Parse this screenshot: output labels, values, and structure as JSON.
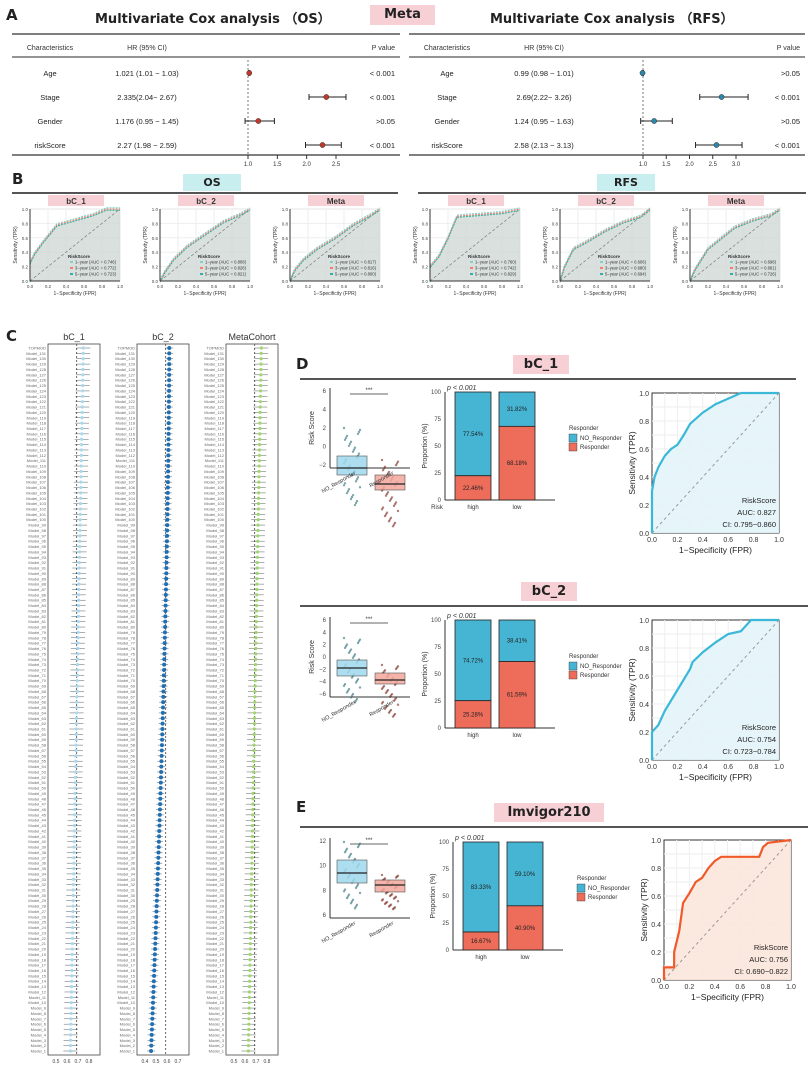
{
  "panelA": {
    "letter": "A",
    "center_label": "Meta",
    "headers": {
      "characteristics": "Characteristics",
      "hr": "HR (95% CI)",
      "p": "P value"
    },
    "os": {
      "title": "Multivariate Cox analysis （OS）",
      "rows": [
        {
          "name": "Age",
          "hr_text": "1.021 (1.01 − 1.03)",
          "hr": 1.021,
          "lo": 1.01,
          "hi": 1.03,
          "p": "< 0.001"
        },
        {
          "name": "Stage",
          "hr_text": "2.335(2.04− 2.67)",
          "hr": 2.335,
          "lo": 2.04,
          "hi": 2.67,
          "p": "< 0.001"
        },
        {
          "name": "Gender",
          "hr_text": "1.176 (0.95 − 1.45)",
          "hr": 1.176,
          "lo": 0.95,
          "hi": 1.45,
          "p": ">0.05"
        },
        {
          "name": "riskScore",
          "hr_text": "2.27 (1.98 − 2.59)",
          "hr": 2.27,
          "lo": 1.98,
          "hi": 2.59,
          "p": "< 0.001"
        }
      ],
      "ticks": [
        "1.0",
        "1.5",
        "2.0",
        "2.5"
      ],
      "color": "#c0392b"
    },
    "rfs": {
      "title": "Multivariate Cox analysis （RFS）",
      "rows": [
        {
          "name": "Age",
          "hr_text": "0.99 (0.98 − 1.01)",
          "hr": 0.99,
          "lo": 0.98,
          "hi": 1.01,
          "p": ">0.05"
        },
        {
          "name": "Stage",
          "hr_text": "2.69(2.22− 3.26)",
          "hr": 2.69,
          "lo": 2.22,
          "hi": 3.26,
          "p": "< 0.001"
        },
        {
          "name": "Gender",
          "hr_text": "1.24 (0.95 − 1.63)",
          "hr": 1.24,
          "lo": 0.95,
          "hi": 1.63,
          "p": ">0.05"
        },
        {
          "name": "riskScore",
          "hr_text": "2.58 (2.13 − 3.13)",
          "hr": 2.58,
          "lo": 2.13,
          "hi": 3.13,
          "p": "< 0.001"
        }
      ],
      "ticks": [
        "1.0",
        "1.5",
        "2.0",
        "2.5",
        "3.0"
      ],
      "color": "#2e86ab"
    }
  },
  "panelB": {
    "letter": "B",
    "os_label": "OS",
    "rfs_label": "RFS",
    "xlabel": "1−Specificity (FPR)",
    "ylabel": "Sensitivity (TPR)",
    "legend_title": "RiskScore",
    "ticks": [
      "0.0",
      "0.2",
      "0.4",
      "0.6",
      "0.8",
      "1.0"
    ],
    "plots": [
      {
        "cohort": "bC_1",
        "group": "OS",
        "aucs": [
          "1−year (AUC = 0.746)",
          "3−year (AUC = 0.772)",
          "5−year (AUC = 0.723)"
        ]
      },
      {
        "cohort": "bC_2",
        "group": "OS",
        "aucs": [
          "1−year (AUC = 0.808)",
          "3−year (AUC = 0.826)",
          "5−year (AUC = 0.821)"
        ]
      },
      {
        "cohort": "Meta",
        "group": "OS",
        "aucs": [
          "1−year (AUC = 0.817)",
          "3−year (AUC = 0.816)",
          "5−year (AUC = 0.800)"
        ]
      },
      {
        "cohort": "bC_1",
        "group": "RFS",
        "aucs": [
          "1−year (AUC = 0.760)",
          "3−year (AUC = 0.742)",
          "5−year (AUC = 0.829)"
        ]
      },
      {
        "cohort": "bC_2",
        "group": "RFS",
        "aucs": [
          "1−year (AUC = 0.606)",
          "3−year (AUC = 0.680)",
          "5−year (AUC = 0.694)"
        ]
      },
      {
        "cohort": "Meta",
        "group": "RFS",
        "aucs": [
          "1−year (AUC = 0.698)",
          "3−year (AUC = 0.681)",
          "5−year (AUC = 0.726)"
        ]
      }
    ]
  },
  "panelC": {
    "letter": "C",
    "columns": [
      {
        "title": "bC_1",
        "color": "#a8d8f0",
        "ticks": [
          "0.5",
          "0.6",
          "0.7",
          "0.8"
        ]
      },
      {
        "title": "bC_2",
        "color": "#1f6fb5",
        "ticks": [
          "0.4",
          "0.5",
          "0.6",
          "0.7"
        ]
      },
      {
        "title": "MetaCohort",
        "color": "#9fd56e",
        "ticks": [
          "0.5",
          "0.6",
          "0.7",
          "0.8"
        ]
      }
    ],
    "first_row_label": "TOPMOD"
  },
  "panelD": {
    "letter": "D",
    "cohorts": [
      {
        "name": "bC_1",
        "box": {
          "ylabel": "Risk Score",
          "yticks": [
            "6",
            "4",
            "2",
            "0",
            "−2"
          ],
          "groups": [
            "NO_Responder",
            "Responder"
          ],
          "sig": "***"
        },
        "bar": {
          "p": "p < 0.001",
          "ylabel": "Proportion (%)",
          "yticks": [
            "100",
            "75",
            "50",
            "25",
            "0"
          ],
          "xlabel_prefix": "Risk",
          "categories": [
            "high",
            "low"
          ],
          "no_responder": [
            77.54,
            31.82
          ],
          "responder": [
            22.46,
            68.18
          ],
          "no_labels": [
            "77.54%",
            "31.82%"
          ],
          "r_labels": [
            "22.46%",
            "68.18%"
          ]
        },
        "roc": {
          "label": "RiskScore",
          "auc": "AUC: 0.827",
          "ci": "CI: 0.795−0.860",
          "color": "#3bb8d8",
          "fill": "#e3f4f9"
        }
      },
      {
        "name": "bC_2",
        "box": {
          "ylabel": "Risk Score",
          "yticks": [
            "6",
            "4",
            "2",
            "0",
            "−2",
            "−4",
            "−6"
          ],
          "groups": [
            "NO_Responder",
            "Responder"
          ],
          "sig": "***"
        },
        "bar": {
          "p": "p < 0.001",
          "ylabel": "Proportion (%)",
          "yticks": [
            "100",
            "75",
            "50",
            "25",
            "0"
          ],
          "xlabel_prefix": "",
          "categories": [
            "high",
            "low"
          ],
          "no_responder": [
            74.72,
            38.41
          ],
          "responder": [
            25.28,
            61.59
          ],
          "no_labels": [
            "74.72%",
            "38.41%"
          ],
          "r_labels": [
            "25.28%",
            "61.59%"
          ]
        },
        "roc": {
          "label": "RiskScore",
          "auc": "AUC: 0.754",
          "ci": "CI: 0.723−0.784",
          "color": "#3bb8d8",
          "fill": "#e3f4f9"
        }
      }
    ]
  },
  "panelE": {
    "letter": "E",
    "name": "Imvigor210",
    "box": {
      "ylabel": "",
      "yticks": [
        "12",
        "10",
        "8",
        "6"
      ],
      "groups": [
        "NO_Responder",
        "Responder"
      ],
      "sig": "***"
    },
    "bar": {
      "p": "p < 0.001",
      "ylabel": "Proportion (%)",
      "yticks": [
        "100",
        "75",
        "50",
        "25",
        "0"
      ],
      "categories": [
        "high",
        "low"
      ],
      "no_responder": [
        83.33,
        59.1
      ],
      "responder": [
        16.67,
        40.9
      ],
      "no_labels": [
        "83.33%",
        "59.10%"
      ],
      "r_labels": [
        "16.67%",
        "40.90%"
      ]
    },
    "roc": {
      "label": "RiskScore",
      "auc": "AUC: 0.756",
      "ci": "CI: 0.690−0.822",
      "color": "#f05a28",
      "fill": "#fbe6dc"
    }
  },
  "legend": {
    "title": "Responder",
    "items": [
      "NO_Responder",
      "Responder"
    ],
    "colors": [
      "#45b5d3",
      "#ee6c5a"
    ]
  },
  "roc_axis": {
    "xlabel": "1−Specificity (FPR)",
    "ylabel": "Sensitivity (TPR)",
    "ticks": [
      "0.0",
      "0.2",
      "0.4",
      "0.6",
      "0.8",
      "1.0"
    ]
  },
  "chart_data": [
    {
      "type": "scatter",
      "title": "Multivariate Cox analysis (OS)",
      "categories": [
        "Age",
        "Stage",
        "Gender",
        "riskScore"
      ],
      "values": [
        1.021,
        2.335,
        1.176,
        2.27
      ],
      "ci_low": [
        1.01,
        2.04,
        0.95,
        1.98
      ],
      "ci_high": [
        1.03,
        2.67,
        1.45,
        2.59
      ],
      "xlim": [
        1.0,
        2.7
      ]
    },
    {
      "type": "scatter",
      "title": "Multivariate Cox analysis (RFS)",
      "categories": [
        "Age",
        "Stage",
        "Gender",
        "riskScore"
      ],
      "values": [
        0.99,
        2.69,
        1.24,
        2.58
      ],
      "ci_low": [
        0.98,
        2.22,
        0.95,
        2.13
      ],
      "ci_high": [
        1.01,
        3.26,
        1.63,
        3.13
      ],
      "xlim": [
        1.0,
        3.3
      ]
    },
    {
      "type": "bar",
      "title": "bC_1 Proportion",
      "categories": [
        "high",
        "low"
      ],
      "series": [
        {
          "name": "NO_Responder",
          "values": [
            77.54,
            31.82
          ]
        },
        {
          "name": "Responder",
          "values": [
            22.46,
            68.18
          ]
        }
      ],
      "ylim": [
        0,
        100
      ]
    },
    {
      "type": "bar",
      "title": "bC_2 Proportion",
      "categories": [
        "high",
        "low"
      ],
      "series": [
        {
          "name": "NO_Responder",
          "values": [
            74.72,
            38.41
          ]
        },
        {
          "name": "Responder",
          "values": [
            25.28,
            61.59
          ]
        }
      ],
      "ylim": [
        0,
        100
      ]
    },
    {
      "type": "bar",
      "title": "Imvigor210 Proportion",
      "categories": [
        "high",
        "low"
      ],
      "series": [
        {
          "name": "NO_Responder",
          "values": [
            83.33,
            59.1
          ]
        },
        {
          "name": "Responder",
          "values": [
            16.67,
            40.9
          ]
        }
      ],
      "ylim": [
        0,
        100
      ]
    },
    {
      "type": "line",
      "title": "bC_1 ROC",
      "x": [
        0,
        0,
        0.02,
        0.05,
        0.1,
        0.15,
        0.2,
        0.25,
        0.3,
        0.4,
        0.5,
        0.6,
        0.7,
        1.0
      ],
      "y": [
        0,
        0.3,
        0.4,
        0.47,
        0.55,
        0.6,
        0.63,
        0.7,
        0.78,
        0.86,
        0.92,
        0.96,
        1.0,
        1.0
      ],
      "xlim": [
        0,
        1
      ],
      "ylim": [
        0,
        1
      ]
    },
    {
      "type": "line",
      "title": "bC_2 ROC",
      "x": [
        0,
        0,
        0.05,
        0.1,
        0.2,
        0.3,
        0.32,
        0.4,
        0.5,
        0.6,
        0.7,
        0.78,
        1.0
      ],
      "y": [
        0,
        0.2,
        0.25,
        0.35,
        0.5,
        0.65,
        0.7,
        0.77,
        0.84,
        0.9,
        0.92,
        1.0,
        1.0
      ],
      "xlim": [
        0,
        1
      ],
      "ylim": [
        0,
        1
      ]
    },
    {
      "type": "line",
      "title": "Imvigor210 ROC",
      "x": [
        0,
        0,
        0.08,
        0.08,
        0.12,
        0.15,
        0.2,
        0.25,
        0.3,
        0.35,
        0.4,
        0.45,
        0.75,
        0.78,
        0.82,
        1.0
      ],
      "y": [
        0,
        0.09,
        0.09,
        0.2,
        0.35,
        0.55,
        0.62,
        0.7,
        0.73,
        0.8,
        0.85,
        0.88,
        0.88,
        0.95,
        0.98,
        1.0
      ],
      "xlim": [
        0,
        1
      ],
      "ylim": [
        0,
        1
      ]
    }
  ]
}
